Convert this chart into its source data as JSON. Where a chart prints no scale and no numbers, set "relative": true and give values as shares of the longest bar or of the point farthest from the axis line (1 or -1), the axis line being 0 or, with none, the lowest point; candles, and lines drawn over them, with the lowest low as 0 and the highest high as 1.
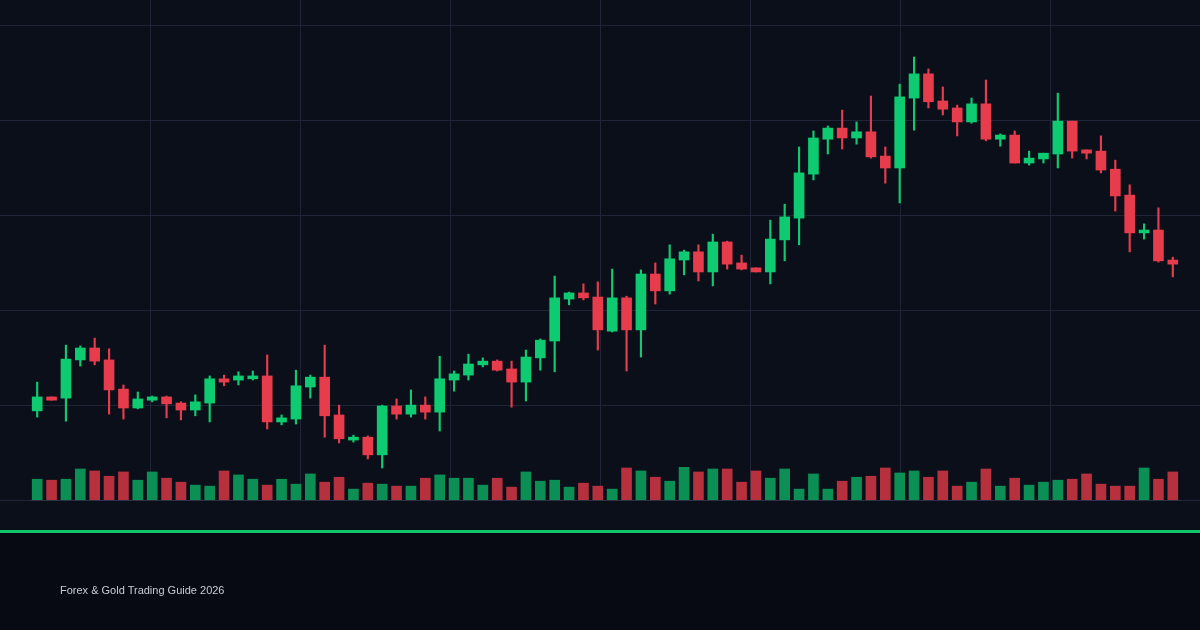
{
  "chart_data": [
    {
      "type": "candlestick",
      "relative": true,
      "grid": true,
      "annotations": [
        "Forex & Gold Trading Guide 2026"
      ],
      "categories": [
        null,
        null,
        null,
        null,
        null,
        null,
        null,
        null,
        null,
        null,
        null,
        null,
        null,
        null,
        null,
        null,
        null,
        null,
        null,
        null,
        null,
        null,
        null,
        null,
        null,
        null,
        null,
        null,
        null,
        null,
        null,
        null,
        null,
        null,
        null,
        null,
        null,
        null,
        null,
        null,
        null,
        null,
        null,
        null,
        null,
        null,
        null,
        null,
        null,
        null,
        null,
        null,
        null,
        null,
        null,
        null,
        null,
        null,
        null,
        null,
        null,
        null,
        null,
        null,
        null,
        null,
        null,
        null,
        null,
        null,
        null,
        null,
        null,
        null,
        null,
        null,
        null,
        null,
        null,
        null
      ],
      "ohlc": [
        [
          0.139,
          0.209,
          0.124,
          0.173
        ],
        [
          0.173,
          0.173,
          0.165,
          0.165
        ],
        [
          0.17,
          0.299,
          0.114,
          0.265
        ],
        [
          0.263,
          0.297,
          0.248,
          0.292
        ],
        [
          0.292,
          0.316,
          0.251,
          0.26
        ],
        [
          0.263,
          0.29,
          0.131,
          0.19
        ],
        [
          0.192,
          0.202,
          0.119,
          0.146
        ],
        [
          0.146,
          0.185,
          0.144,
          0.168
        ],
        [
          0.165,
          0.175,
          0.161,
          0.173
        ],
        [
          0.173,
          0.175,
          0.122,
          0.156
        ],
        [
          0.158,
          0.161,
          0.117,
          0.141
        ],
        [
          0.141,
          0.178,
          0.127,
          0.161
        ],
        [
          0.158,
          0.224,
          0.112,
          0.217
        ],
        [
          0.217,
          0.226,
          0.2,
          0.209
        ],
        [
          0.214,
          0.234,
          0.202,
          0.224
        ],
        [
          0.217,
          0.236,
          0.214,
          0.224
        ],
        [
          0.224,
          0.275,
          0.095,
          0.112
        ],
        [
          0.112,
          0.129,
          0.105,
          0.122
        ],
        [
          0.119,
          0.238,
          0.107,
          0.2
        ],
        [
          0.197,
          0.226,
          0.17,
          0.221
        ],
        [
          0.221,
          0.299,
          0.075,
          0.127
        ],
        [
          0.129,
          0.153,
          0.061,
          0.071
        ],
        [
          0.068,
          0.08,
          0.063,
          0.075
        ],
        [
          0.075,
          0.078,
          0.022,
          0.032
        ],
        [
          0.032,
          0.153,
          0,
          0.151
        ],
        [
          0.151,
          0.168,
          0.119,
          0.131
        ],
        [
          0.131,
          0.19,
          0.124,
          0.153
        ],
        [
          0.153,
          0.173,
          0.119,
          0.136
        ],
        [
          0.136,
          0.272,
          0.09,
          0.217
        ],
        [
          0.214,
          0.236,
          0.187,
          0.229
        ],
        [
          0.226,
          0.277,
          0.214,
          0.253
        ],
        [
          0.251,
          0.268,
          0.246,
          0.26
        ],
        [
          0.26,
          0.263,
          0.236,
          0.238
        ],
        [
          0.241,
          0.26,
          0.148,
          0.209
        ],
        [
          0.209,
          0.287,
          0.163,
          0.27
        ],
        [
          0.268,
          0.314,
          0.238,
          0.311
        ],
        [
          0.309,
          0.467,
          0.234,
          0.414
        ],
        [
          0.411,
          0.428,
          0.397,
          0.426
        ],
        [
          0.426,
          0.448,
          0.409,
          0.414
        ],
        [
          0.416,
          0.453,
          0.287,
          0.336
        ],
        [
          0.333,
          0.484,
          0.331,
          0.414
        ],
        [
          0.414,
          0.418,
          0.236,
          0.336
        ],
        [
          0.336,
          0.482,
          0.27,
          0.472
        ],
        [
          0.472,
          0.499,
          0.399,
          0.431
        ],
        [
          0.431,
          0.543,
          0.423,
          0.509
        ],
        [
          0.506,
          0.53,
          0.47,
          0.526
        ],
        [
          0.526,
          0.543,
          0.455,
          0.477
        ],
        [
          0.477,
          0.569,
          0.443,
          0.55
        ],
        [
          0.55,
          0.552,
          0.484,
          0.496
        ],
        [
          0.499,
          0.518,
          0.482,
          0.484
        ],
        [
          0.487,
          0.487,
          0.477,
          0.477
        ],
        [
          0.477,
          0.603,
          0.448,
          0.557
        ],
        [
          0.555,
          0.642,
          0.504,
          0.611
        ],
        [
          0.608,
          0.781,
          0.543,
          0.718
        ],
        [
          0.715,
          0.82,
          0.701,
          0.803
        ],
        [
          0.8,
          0.832,
          0.764,
          0.827
        ],
        [
          0.827,
          0.871,
          0.776,
          0.803
        ],
        [
          0.803,
          0.842,
          0.788,
          0.818
        ],
        [
          0.818,
          0.905,
          0.754,
          0.757
        ],
        [
          0.759,
          0.781,
          0.693,
          0.73
        ],
        [
          0.73,
          0.934,
          0.645,
          0.903
        ],
        [
          0.9,
          1,
          0.822,
          0.959
        ],
        [
          0.959,
          0.971,
          0.876,
          0.891
        ],
        [
          0.893,
          0.927,
          0.859,
          0.873
        ],
        [
          0.876,
          0.883,
          0.808,
          0.842
        ],
        [
          0.842,
          0.9,
          0.839,
          0.886
        ],
        [
          0.886,
          0.944,
          0.796,
          0.8
        ],
        [
          0.8,
          0.813,
          0.783,
          0.81
        ],
        [
          0.81,
          0.82,
          0.742,
          0.742
        ],
        [
          0.742,
          0.771,
          0.737,
          0.754
        ],
        [
          0.752,
          0.766,
          0.742,
          0.766
        ],
        [
          0.764,
          0.912,
          0.73,
          0.844
        ],
        [
          0.844,
          0.844,
          0.754,
          0.771
        ],
        [
          0.774,
          0.774,
          0.752,
          0.766
        ],
        [
          0.771,
          0.808,
          0.718,
          0.725
        ],
        [
          0.727,
          0.749,
          0.625,
          0.662
        ],
        [
          0.664,
          0.689,
          0.526,
          0.572
        ],
        [
          0.572,
          0.594,
          0.557,
          0.579
        ],
        [
          0.579,
          0.633,
          0.501,
          0.504
        ],
        [
          0.506,
          0.513,
          0.465,
          0.496
        ]
      ],
      "colors": [
        "#0ecb71",
        "#e63c4c",
        "#0ecb71",
        "#0ecb71",
        "#e63c4c",
        "#e63c4c",
        "#e63c4c",
        "#0ecb71",
        "#0ecb71",
        "#e63c4c",
        "#e63c4c",
        "#0ecb71",
        "#0ecb71",
        "#e63c4c",
        "#0ecb71",
        "#0ecb71",
        "#e63c4c",
        "#0ecb71",
        "#0ecb71",
        "#0ecb71",
        "#e63c4c",
        "#e63c4c",
        "#0ecb71",
        "#e63c4c",
        "#0ecb71",
        "#e63c4c",
        "#0ecb71",
        "#e63c4c",
        "#0ecb71",
        "#0ecb71",
        "#0ecb71",
        "#0ecb71",
        "#e63c4c",
        "#e63c4c",
        "#0ecb71",
        "#0ecb71",
        "#0ecb71",
        "#0ecb71",
        "#e63c4c",
        "#e63c4c",
        "#0ecb71",
        "#e63c4c",
        "#0ecb71",
        "#e63c4c",
        "#0ecb71",
        "#0ecb71",
        "#e63c4c",
        "#0ecb71",
        "#e63c4c",
        "#e63c4c",
        "#e63c4c",
        "#0ecb71",
        "#0ecb71",
        "#0ecb71",
        "#0ecb71",
        "#0ecb71",
        "#e63c4c",
        "#0ecb71",
        "#e63c4c",
        "#e63c4c",
        "#0ecb71",
        "#0ecb71",
        "#e63c4c",
        "#e63c4c",
        "#e63c4c",
        "#0ecb71",
        "#e63c4c",
        "#0ecb71",
        "#e63c4c",
        "#0ecb71",
        "#0ecb71",
        "#0ecb71",
        "#e63c4c",
        "#e63c4c",
        "#e63c4c",
        "#e63c4c",
        "#e63c4c",
        "#0ecb71",
        "#e63c4c",
        "#e63c4c"
      ]
    },
    {
      "type": "bar",
      "relative": true,
      "categories": [
        null,
        null,
        null,
        null,
        null,
        null,
        null,
        null,
        null,
        null,
        null,
        null,
        null,
        null,
        null,
        null,
        null,
        null,
        null,
        null,
        null,
        null,
        null,
        null,
        null,
        null,
        null,
        null,
        null,
        null,
        null,
        null,
        null,
        null,
        null,
        null,
        null,
        null,
        null,
        null,
        null,
        null,
        null,
        null,
        null,
        null,
        null,
        null,
        null,
        null,
        null,
        null,
        null,
        null,
        null,
        null,
        null,
        null,
        null,
        null,
        null,
        null,
        null,
        null,
        null,
        null,
        null,
        null,
        null,
        null,
        null,
        null,
        null,
        null,
        null,
        null,
        null,
        null,
        null,
        null
      ],
      "values": [
        0.63,
        0.6,
        0.63,
        0.94,
        0.88,
        0.72,
        0.85,
        0.6,
        0.85,
        0.66,
        0.54,
        0.45,
        0.42,
        0.88,
        0.76,
        0.63,
        0.45,
        0.63,
        0.48,
        0.79,
        0.54,
        0.69,
        0.33,
        0.51,
        0.48,
        0.42,
        0.42,
        0.66,
        0.76,
        0.66,
        0.66,
        0.45,
        0.66,
        0.39,
        0.85,
        0.57,
        0.6,
        0.39,
        0.51,
        0.42,
        0.33,
        0.97,
        0.88,
        0.69,
        0.57,
        1,
        0.85,
        0.94,
        0.94,
        0.54,
        0.88,
        0.66,
        0.94,
        0.33,
        0.79,
        0.33,
        0.57,
        0.69,
        0.72,
        0.97,
        0.82,
        0.88,
        0.69,
        0.88,
        0.42,
        0.54,
        0.94,
        0.42,
        0.66,
        0.45,
        0.54,
        0.6,
        0.63,
        0.79,
        0.48,
        0.42,
        0.42,
        0.97,
        0.63,
        0.85
      ],
      "colors": [
        "#0b8f55",
        "#b7303e",
        "#0b8f55",
        "#0b8f55",
        "#b7303e",
        "#b7303e",
        "#b7303e",
        "#0b8f55",
        "#0b8f55",
        "#b7303e",
        "#b7303e",
        "#0b8f55",
        "#0b8f55",
        "#b7303e",
        "#0b8f55",
        "#0b8f55",
        "#b7303e",
        "#0b8f55",
        "#0b8f55",
        "#0b8f55",
        "#b7303e",
        "#b7303e",
        "#0b8f55",
        "#b7303e",
        "#0b8f55",
        "#b7303e",
        "#0b8f55",
        "#b7303e",
        "#0b8f55",
        "#0b8f55",
        "#0b8f55",
        "#0b8f55",
        "#b7303e",
        "#b7303e",
        "#0b8f55",
        "#0b8f55",
        "#0b8f55",
        "#0b8f55",
        "#b7303e",
        "#b7303e",
        "#0b8f55",
        "#b7303e",
        "#0b8f55",
        "#b7303e",
        "#0b8f55",
        "#0b8f55",
        "#b7303e",
        "#0b8f55",
        "#b7303e",
        "#b7303e",
        "#b7303e",
        "#0b8f55",
        "#0b8f55",
        "#0b8f55",
        "#0b8f55",
        "#0b8f55",
        "#b7303e",
        "#0b8f55",
        "#b7303e",
        "#b7303e",
        "#0b8f55",
        "#0b8f55",
        "#b7303e",
        "#b7303e",
        "#b7303e",
        "#0b8f55",
        "#b7303e",
        "#0b8f55",
        "#b7303e",
        "#0b8f55",
        "#0b8f55",
        "#0b8f55",
        "#b7303e",
        "#b7303e",
        "#b7303e",
        "#b7303e",
        "#b7303e",
        "#0b8f55",
        "#b7303e",
        "#b7303e"
      ]
    }
  ]
}
